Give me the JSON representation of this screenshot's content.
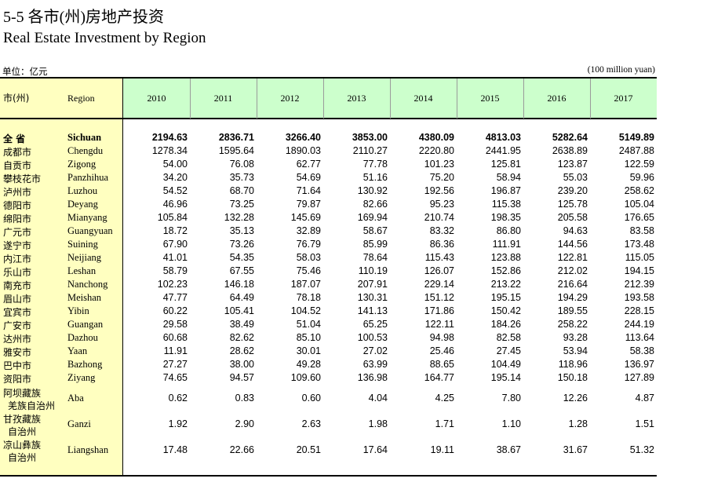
{
  "title_cn": "5-5 各市(州)房地产投资",
  "title_en": "Real Estate Investment by Region",
  "unit_cn": "单位：亿元",
  "unit_en": "(100 million yuan)",
  "table": {
    "columns": [
      "市(州)",
      "Region",
      "2010",
      "2011",
      "2012",
      "2013",
      "2014",
      "2015",
      "2016",
      "2017"
    ],
    "rows": [
      {
        "cn": [
          "全 省"
        ],
        "en": "Sichuan",
        "values": [
          "2194.63",
          "2836.71",
          "3266.40",
          "3853.00",
          "4380.09",
          "4813.03",
          "5282.64",
          "5149.89"
        ]
      },
      {
        "cn": [
          "成都市"
        ],
        "en": "Chengdu",
        "values": [
          "1278.34",
          "1595.64",
          "1890.03",
          "2110.27",
          "2220.80",
          "2441.95",
          "2638.89",
          "2487.88"
        ]
      },
      {
        "cn": [
          "自贡市"
        ],
        "en": "Zigong",
        "values": [
          "54.00",
          "76.08",
          "62.77",
          "77.78",
          "101.23",
          "125.81",
          "123.87",
          "122.59"
        ]
      },
      {
        "cn": [
          "攀枝花市"
        ],
        "en": "Panzhihua",
        "values": [
          "34.20",
          "35.73",
          "54.69",
          "51.16",
          "75.20",
          "58.94",
          "55.03",
          "59.96"
        ]
      },
      {
        "cn": [
          "泸州市"
        ],
        "en": "Luzhou",
        "values": [
          "54.52",
          "68.70",
          "71.64",
          "130.92",
          "192.56",
          "196.87",
          "239.20",
          "258.62"
        ]
      },
      {
        "cn": [
          "德阳市"
        ],
        "en": "Deyang",
        "values": [
          "46.96",
          "73.25",
          "79.87",
          "82.66",
          "95.23",
          "115.38",
          "125.78",
          "105.04"
        ]
      },
      {
        "cn": [
          "绵阳市"
        ],
        "en": "Mianyang",
        "values": [
          "105.84",
          "132.28",
          "145.69",
          "169.94",
          "210.74",
          "198.35",
          "205.58",
          "176.65"
        ]
      },
      {
        "cn": [
          "广元市"
        ],
        "en": "Guangyuan",
        "values": [
          "18.72",
          "35.13",
          "32.89",
          "58.67",
          "83.32",
          "86.80",
          "94.63",
          "83.58"
        ]
      },
      {
        "cn": [
          "遂宁市"
        ],
        "en": "Suining",
        "values": [
          "67.90",
          "73.26",
          "76.79",
          "85.99",
          "86.36",
          "111.91",
          "144.56",
          "173.48"
        ]
      },
      {
        "cn": [
          "内江市"
        ],
        "en": "Neijiang",
        "values": [
          "41.01",
          "54.35",
          "58.03",
          "78.64",
          "115.43",
          "123.88",
          "122.81",
          "115.05"
        ]
      },
      {
        "cn": [
          "乐山市"
        ],
        "en": "Leshan",
        "values": [
          "58.79",
          "67.55",
          "75.46",
          "110.19",
          "126.07",
          "152.86",
          "212.02",
          "194.15"
        ]
      },
      {
        "cn": [
          "南充市"
        ],
        "en": "Nanchong",
        "values": [
          "102.23",
          "146.18",
          "187.07",
          "207.91",
          "229.14",
          "213.22",
          "216.64",
          "212.39"
        ]
      },
      {
        "cn": [
          "眉山市"
        ],
        "en": "Meishan",
        "values": [
          "47.77",
          "64.49",
          "78.18",
          "130.31",
          "151.12",
          "195.15",
          "194.29",
          "193.58"
        ]
      },
      {
        "cn": [
          "宜宾市"
        ],
        "en": "Yibin",
        "values": [
          "60.22",
          "105.41",
          "104.52",
          "141.13",
          "171.86",
          "150.42",
          "189.55",
          "228.15"
        ]
      },
      {
        "cn": [
          "广安市"
        ],
        "en": "Guangan",
        "values": [
          "29.58",
          "38.49",
          "51.04",
          "65.25",
          "122.11",
          "184.26",
          "258.22",
          "244.19"
        ]
      },
      {
        "cn": [
          "达州市"
        ],
        "en": "Dazhou",
        "values": [
          "60.68",
          "82.62",
          "85.10",
          "100.53",
          "94.98",
          "82.58",
          "93.28",
          "113.64"
        ]
      },
      {
        "cn": [
          "雅安市"
        ],
        "en": "Yaan",
        "values": [
          "11.91",
          "28.62",
          "30.01",
          "27.02",
          "25.46",
          "27.45",
          "53.94",
          "58.38"
        ]
      },
      {
        "cn": [
          "巴中市"
        ],
        "en": "Bazhong",
        "values": [
          "27.27",
          "38.00",
          "49.28",
          "63.99",
          "88.65",
          "104.49",
          "118.96",
          "136.97"
        ]
      },
      {
        "cn": [
          "资阳市"
        ],
        "en": "Ziyang",
        "values": [
          "74.65",
          "94.57",
          "109.60",
          "136.98",
          "164.77",
          "195.14",
          "150.18",
          "127.89"
        ]
      },
      {
        "cn": [
          "阿坝藏族",
          "羌族自治州"
        ],
        "en": "Aba",
        "values": [
          "0.62",
          "0.83",
          "0.60",
          "4.04",
          "4.25",
          "7.80",
          "12.26",
          "4.87"
        ]
      },
      {
        "cn": [
          "甘孜藏族",
          "自治州"
        ],
        "en": "Ganzi",
        "values": [
          "1.92",
          "2.90",
          "2.63",
          "1.98",
          "1.71",
          "1.10",
          "1.28",
          "1.51"
        ]
      },
      {
        "cn": [
          "凉山彝族",
          "自治州"
        ],
        "en": "Liangshan",
        "values": [
          "17.48",
          "22.66",
          "20.51",
          "17.64",
          "19.11",
          "38.67",
          "31.67",
          "51.32"
        ]
      }
    ]
  }
}
